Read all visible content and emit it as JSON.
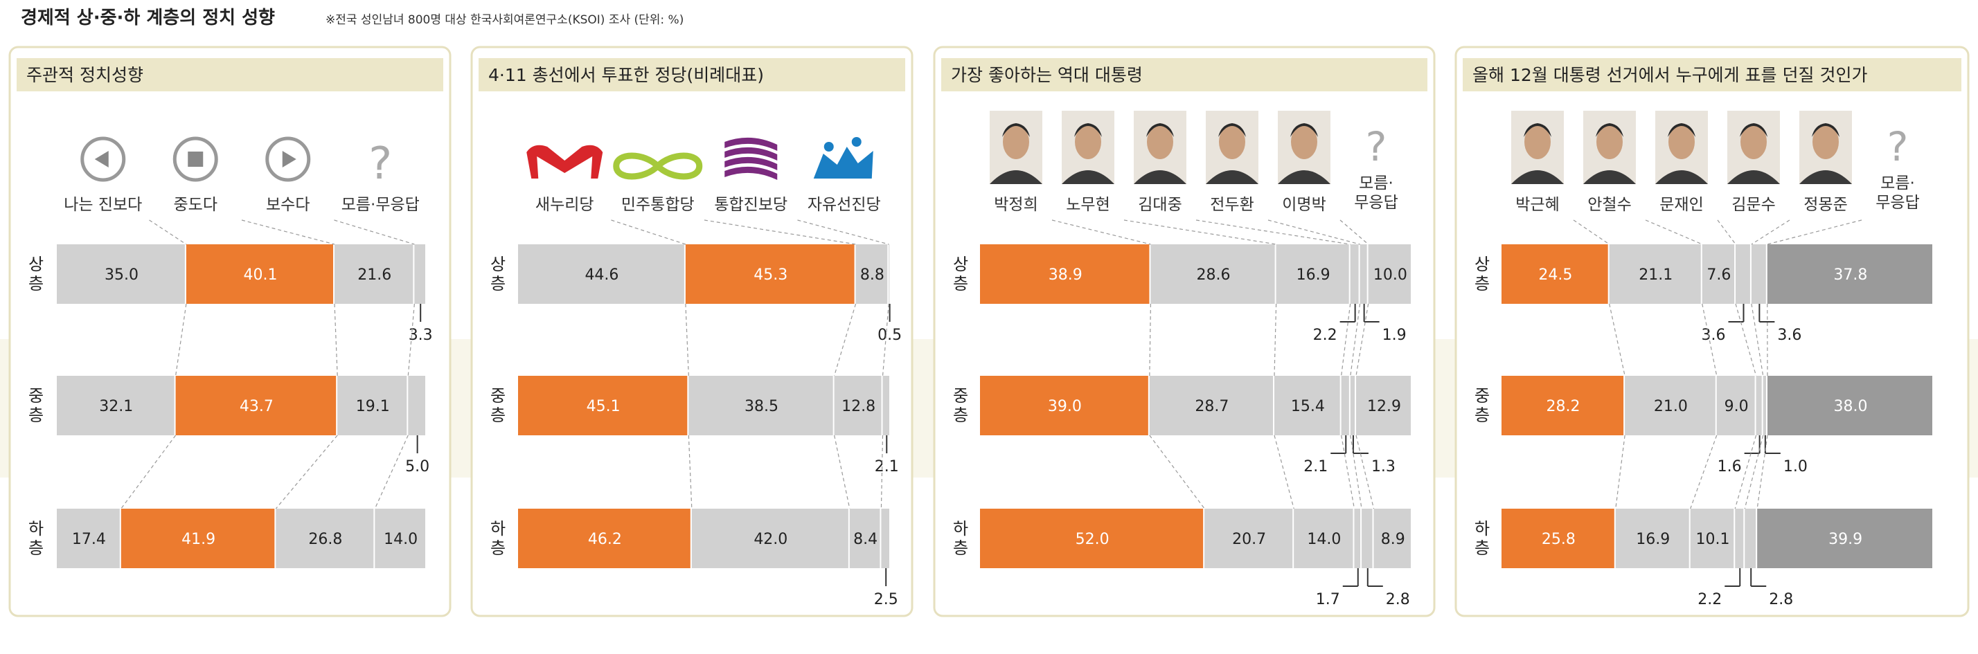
{
  "header": {
    "title": "경제적 상·중·하 계층의 정치 성향",
    "note": "※전국 성인남녀 800명 대상 한국사회여론연구소(KSOI) 조사 (단위: %)"
  },
  "row_labels": [
    "상층",
    "중층",
    "하층"
  ],
  "colors": {
    "orange": "#ec7b2f",
    "light_gray": "#d1d1d1",
    "dark_gray": "#9a9a9a",
    "title_bar": "#ece7c9",
    "panel_border": "#e6e0bf",
    "band": "#f8f6ea"
  },
  "chart_data": [
    {
      "type": "bar",
      "stacked": true,
      "orientation": "horizontal",
      "title": "주관적 정치성향",
      "icons": [
        "back-icon",
        "stop-icon",
        "play-icon",
        "question-icon"
      ],
      "categories": [
        "나는 진보다",
        "중도다",
        "보수다",
        "모름·무응답"
      ],
      "highlight": [
        false,
        true,
        false,
        false
      ],
      "rows": [
        {
          "label": "상층",
          "values": [
            35.0,
            40.1,
            21.6,
            3.3
          ],
          "labels": [
            "35.0",
            "40.1",
            "21.6",
            "3.3"
          ]
        },
        {
          "label": "중층",
          "values": [
            32.1,
            43.7,
            19.1,
            5.0
          ],
          "labels": [
            "32.1",
            "43.7",
            "19.1",
            "5.0"
          ]
        },
        {
          "label": "하층",
          "values": [
            17.4,
            41.9,
            26.8,
            14.0
          ],
          "labels": [
            "17.4",
            "41.9",
            "26.8",
            "14.0"
          ]
        }
      ]
    },
    {
      "type": "bar",
      "stacked": true,
      "orientation": "horizontal",
      "title": "4·11 총선에서 투표한 정당(비례대표)",
      "icons": [
        "saenuri-logo",
        "democratic-united-logo",
        "unified-progressive-logo",
        "liberty-forward-logo"
      ],
      "categories": [
        "새누리당",
        "민주통합당",
        "통합진보당",
        "자유선진당"
      ],
      "highlight_by_row": [
        [
          false,
          true,
          false,
          false
        ],
        [
          true,
          false,
          false,
          false
        ],
        [
          true,
          false,
          false,
          false
        ]
      ],
      "rows": [
        {
          "label": "상층",
          "values": [
            44.6,
            45.3,
            8.8,
            0.5
          ],
          "labels": [
            "44.6",
            "45.3",
            "8.8",
            "0.5"
          ]
        },
        {
          "label": "중층",
          "values": [
            45.1,
            38.5,
            12.8,
            2.1
          ],
          "labels": [
            "45.1",
            "38.5",
            "12.8",
            "2.1"
          ]
        },
        {
          "label": "하층",
          "values": [
            46.2,
            42.0,
            8.4,
            2.5
          ],
          "labels": [
            "46.2",
            "42.0",
            "8.4",
            "2.5"
          ]
        }
      ]
    },
    {
      "type": "bar",
      "stacked": true,
      "orientation": "horizontal",
      "title": "가장 좋아하는 역대 대통령",
      "icons": [
        "portrait-icon",
        "portrait-icon",
        "portrait-icon",
        "portrait-icon",
        "portrait-icon",
        "question-icon"
      ],
      "categories": [
        "박정희",
        "노무현",
        "김대중",
        "전두환",
        "이명박",
        "모름·무응답"
      ],
      "highlight": [
        true,
        false,
        false,
        false,
        false,
        false
      ],
      "rows": [
        {
          "label": "상층",
          "values": [
            38.9,
            28.6,
            16.9,
            2.2,
            1.9,
            10.0
          ],
          "labels": [
            "38.9",
            "28.6",
            "16.9",
            "2.2",
            "1.9",
            "10.0"
          ]
        },
        {
          "label": "중층",
          "values": [
            39.0,
            28.7,
            15.4,
            2.1,
            1.3,
            12.9
          ],
          "labels": [
            "39.0",
            "28.7",
            "15.4",
            "2.1",
            "1.3",
            "12.9"
          ]
        },
        {
          "label": "하층",
          "values": [
            52.0,
            20.7,
            14.0,
            1.7,
            2.8,
            8.9
          ],
          "labels": [
            "52.0",
            "20.7",
            "14.0",
            "1.7",
            "2.8",
            "8.9"
          ]
        }
      ]
    },
    {
      "type": "bar",
      "stacked": true,
      "orientation": "horizontal",
      "title": "올해 12월 대통령 선거에서 누구에게 표를 던질 것인가",
      "icons": [
        "portrait-icon",
        "portrait-icon",
        "portrait-icon",
        "portrait-icon",
        "portrait-icon",
        "question-icon"
      ],
      "categories": [
        "박근혜",
        "안철수",
        "문재인",
        "김문수",
        "정몽준",
        "모름·무응답"
      ],
      "highlight": [
        true,
        false,
        false,
        false,
        false,
        false
      ],
      "last_dark": true,
      "rows": [
        {
          "label": "상층",
          "values": [
            24.5,
            21.1,
            7.6,
            3.6,
            3.6,
            37.8
          ],
          "labels": [
            "24.5",
            "21.1",
            "7.6",
            "3.6",
            "3.6",
            "37.8"
          ]
        },
        {
          "label": "중층",
          "values": [
            28.2,
            21.0,
            9.0,
            1.6,
            1.0,
            38.0
          ],
          "labels": [
            "28.2",
            "21.0",
            "9.0",
            "1.6",
            "1.0",
            "38.0"
          ]
        },
        {
          "label": "하층",
          "values": [
            25.8,
            16.9,
            10.1,
            2.2,
            2.8,
            39.9
          ],
          "labels": [
            "25.8",
            "16.9",
            "10.1",
            "2.2",
            "2.8",
            "39.9"
          ]
        }
      ]
    }
  ]
}
